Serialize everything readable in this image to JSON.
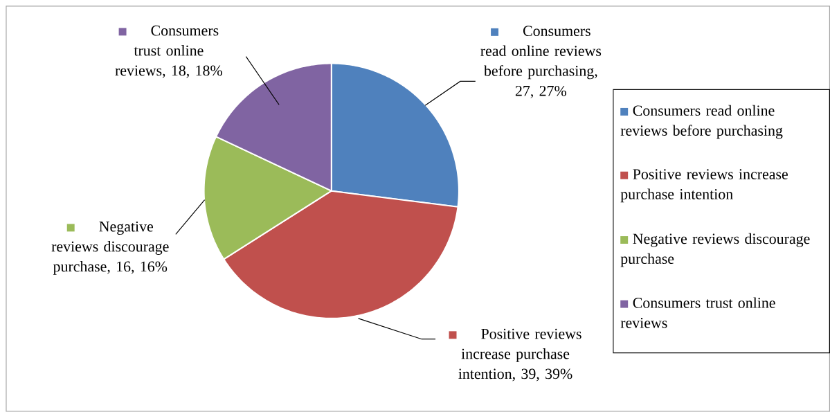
{
  "chart_data": {
    "type": "pie",
    "categories": [
      "Consumers read online reviews before purchasing",
      "Positive reviews increase purchase intention",
      "Negative reviews discourage purchase",
      "Consumers trust online reviews"
    ],
    "values": [
      27,
      39,
      16,
      18
    ],
    "colors": [
      "#4f81bd",
      "#c0504d",
      "#9bbb59",
      "#8064a2"
    ],
    "value_labels": [
      "Consumers read online reviews before purchasing, 27, 27%",
      "Positive reviews increase purchase intention, 39, 39%",
      "Negative reviews discourage purchase, 16, 16%",
      "Consumers trust online reviews, 18, 18%"
    ],
    "legend": "right"
  }
}
